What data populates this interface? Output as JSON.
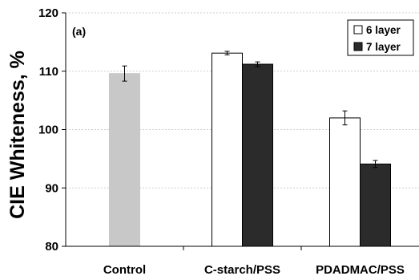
{
  "chart_data": {
    "type": "bar",
    "title": "",
    "annotation": "(a)",
    "xlabel": "",
    "ylabel": "CIE Whiteness, %",
    "ylim": [
      80,
      120
    ],
    "yticks": [
      "80",
      "90",
      "100",
      "110",
      "120"
    ],
    "grid": true,
    "legend_position": "top-right",
    "categories": [
      "Control",
      "C-starch/PSS",
      "PDADMAC/PSS"
    ],
    "control": {
      "value": 109.6,
      "error": 1.3,
      "color": "#c8c8c8"
    },
    "series": [
      {
        "name": "6 layer",
        "values": [
          null,
          113.1,
          102.0
        ],
        "errors": [
          null,
          0.3,
          1.2
        ],
        "color": "#ffffff"
      },
      {
        "name": "7 layer",
        "values": [
          null,
          111.2,
          94.1
        ],
        "errors": [
          null,
          0.4,
          0.6
        ],
        "color": "#2b2b2b"
      }
    ]
  }
}
